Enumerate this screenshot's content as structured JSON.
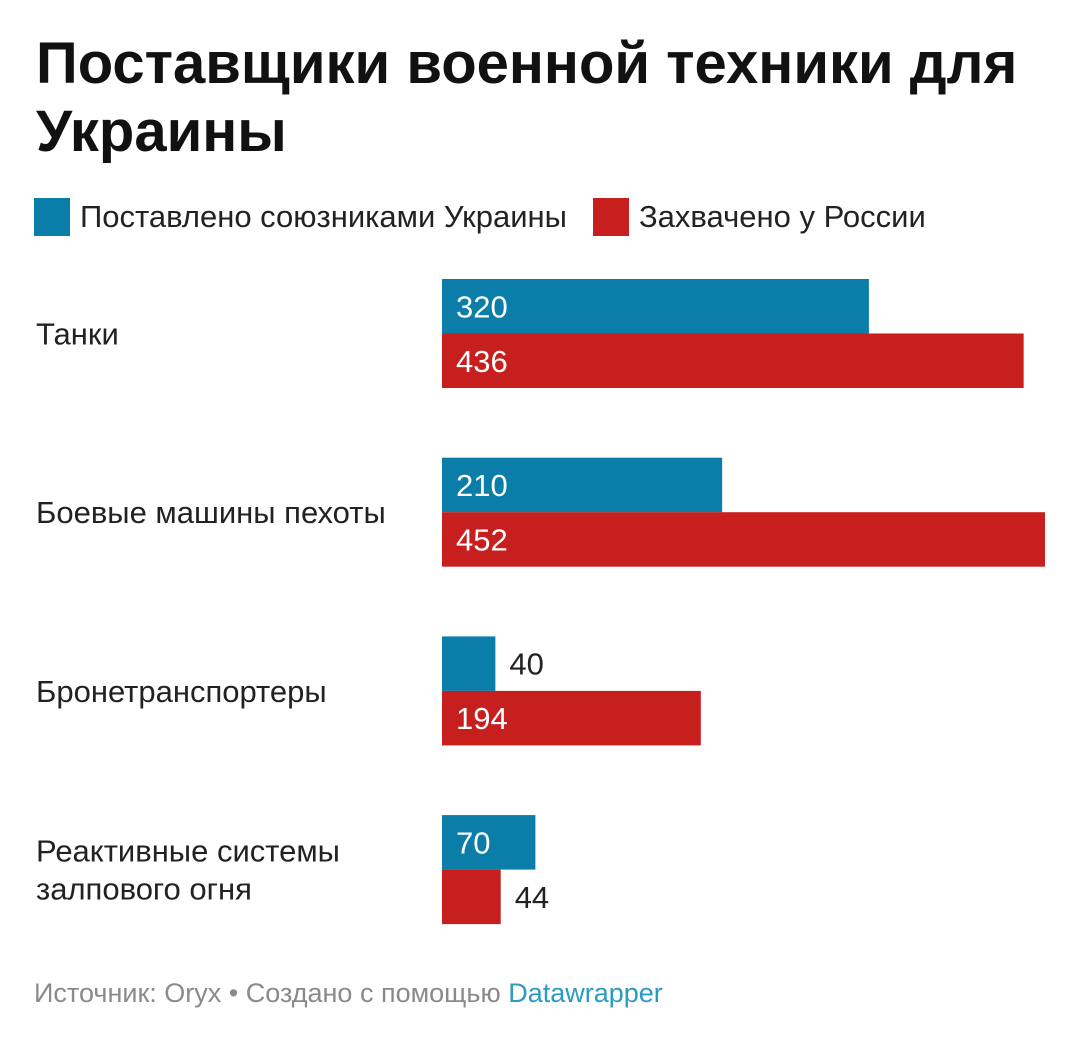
{
  "title": "Поставщики военной техники для Украины",
  "legend": [
    {
      "label": "Поставлено союзниками Украины",
      "color": "#0a7ea8"
    },
    {
      "label": "Захвачено у России",
      "color": "#c71e1e"
    }
  ],
  "chart_data": {
    "type": "bar",
    "orientation": "horizontal",
    "title": "Поставщики военной техники для Украины",
    "categories": [
      "Танки",
      "Боевые машины пехоты",
      "Бронетранспортеры",
      "Реактивные системы залпового огня"
    ],
    "series": [
      {
        "name": "Поставлено союзниками Украины",
        "color": "#0a7ea8",
        "values": [
          320,
          210,
          40,
          70
        ]
      },
      {
        "name": "Захвачено у России",
        "color": "#c71e1e",
        "values": [
          436,
          452,
          194,
          44
        ]
      }
    ],
    "xlim": [
      0,
      452
    ],
    "grid": false,
    "legend_position": "top-left"
  },
  "footer": {
    "source": "Источник: Oryx",
    "separator": "•",
    "created": "Создано с помощью",
    "link": "Datawrapper"
  }
}
